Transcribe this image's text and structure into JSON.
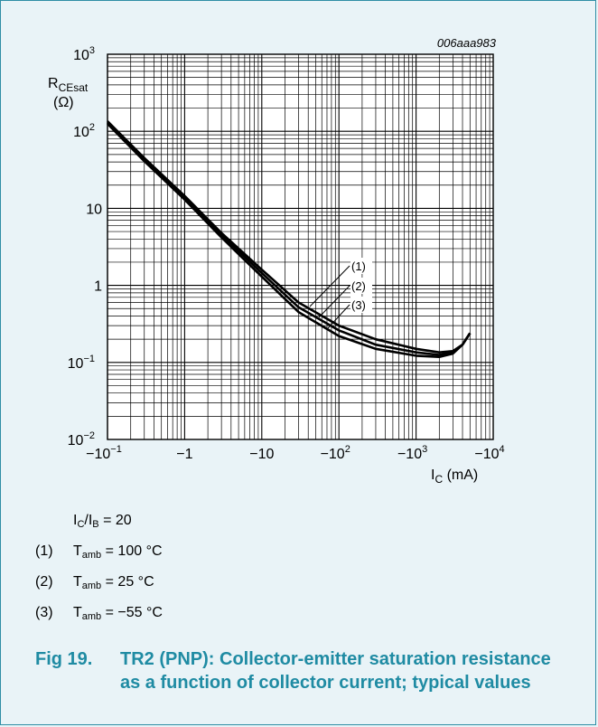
{
  "figure_id": "006aaa983",
  "caption": {
    "number": "Fig 19.",
    "text": "TR2 (PNP): Collector-emitter saturation resistance as a function of collector current; typical values"
  },
  "conditions": {
    "ratio": "I_C/I_B = 20",
    "ratio_parts": {
      "a": "I",
      "a_sub": "C",
      "b": "/I",
      "b_sub": "B",
      "rest": " = 20"
    }
  },
  "legend": [
    {
      "id": "(1)",
      "symbol": "T",
      "sub": "amb",
      "value": " = 100 °C"
    },
    {
      "id": "(2)",
      "symbol": "T",
      "sub": "amb",
      "value": " = 25 °C"
    },
    {
      "id": "(3)",
      "symbol": "T",
      "sub": "amb",
      "value": " = −55 °C"
    }
  ],
  "chart_data": {
    "type": "line",
    "x_scale": "log",
    "y_scale": "log",
    "xlabel": {
      "symbol": "I",
      "sub": "C",
      "unit": " (mA)"
    },
    "ylabel": {
      "symbol": "R",
      "sub": "CEsat",
      "unit": "(Ω)"
    },
    "xlim": [
      -0.1,
      -10000
    ],
    "ylim": [
      0.01,
      1000
    ],
    "x_ticks": [
      {
        "value": -0.1,
        "base": "−10",
        "exp": "−1"
      },
      {
        "value": -1,
        "base": "−1",
        "exp": ""
      },
      {
        "value": -10,
        "base": "−10",
        "exp": ""
      },
      {
        "value": -100,
        "base": "−10",
        "exp": "2"
      },
      {
        "value": -1000,
        "base": "−10",
        "exp": "3"
      },
      {
        "value": -10000,
        "base": "−10",
        "exp": "4"
      }
    ],
    "y_ticks": [
      {
        "value": 0.01,
        "base": "10",
        "exp": "−2"
      },
      {
        "value": 0.1,
        "base": "10",
        "exp": "−1"
      },
      {
        "value": 1,
        "base": "1",
        "exp": ""
      },
      {
        "value": 10,
        "base": "10",
        "exp": ""
      },
      {
        "value": 100,
        "base": "10",
        "exp": "2"
      },
      {
        "value": 1000,
        "base": "10",
        "exp": "3"
      }
    ],
    "grid": true,
    "series": [
      {
        "name": "(1)",
        "x": [
          -0.1,
          -0.3,
          -1,
          -3,
          -10,
          -30,
          -100,
          -300,
          -1000,
          -2000,
          -3000,
          -4000,
          -5000
        ],
        "y": [
          135,
          45,
          14.5,
          4.8,
          1.6,
          0.6,
          0.3,
          0.2,
          0.15,
          0.135,
          0.14,
          0.17,
          0.24
        ]
      },
      {
        "name": "(2)",
        "x": [
          -0.1,
          -0.3,
          -1,
          -3,
          -10,
          -30,
          -100,
          -300,
          -1000,
          -2000,
          -3000,
          -4000,
          -5000
        ],
        "y": [
          130,
          43,
          14,
          4.5,
          1.45,
          0.52,
          0.26,
          0.17,
          0.135,
          0.125,
          0.135,
          0.17,
          0.24
        ]
      },
      {
        "name": "(3)",
        "x": [
          -0.1,
          -0.3,
          -1,
          -3,
          -10,
          -30,
          -100,
          -300,
          -1000,
          -2000,
          -3000,
          -4000,
          -5000
        ],
        "y": [
          125,
          41,
          13,
          4.2,
          1.3,
          0.45,
          0.22,
          0.15,
          0.122,
          0.118,
          0.13,
          0.17,
          0.24
        ]
      }
    ],
    "series_labels": [
      "(1)",
      "(2)",
      "(3)"
    ]
  }
}
